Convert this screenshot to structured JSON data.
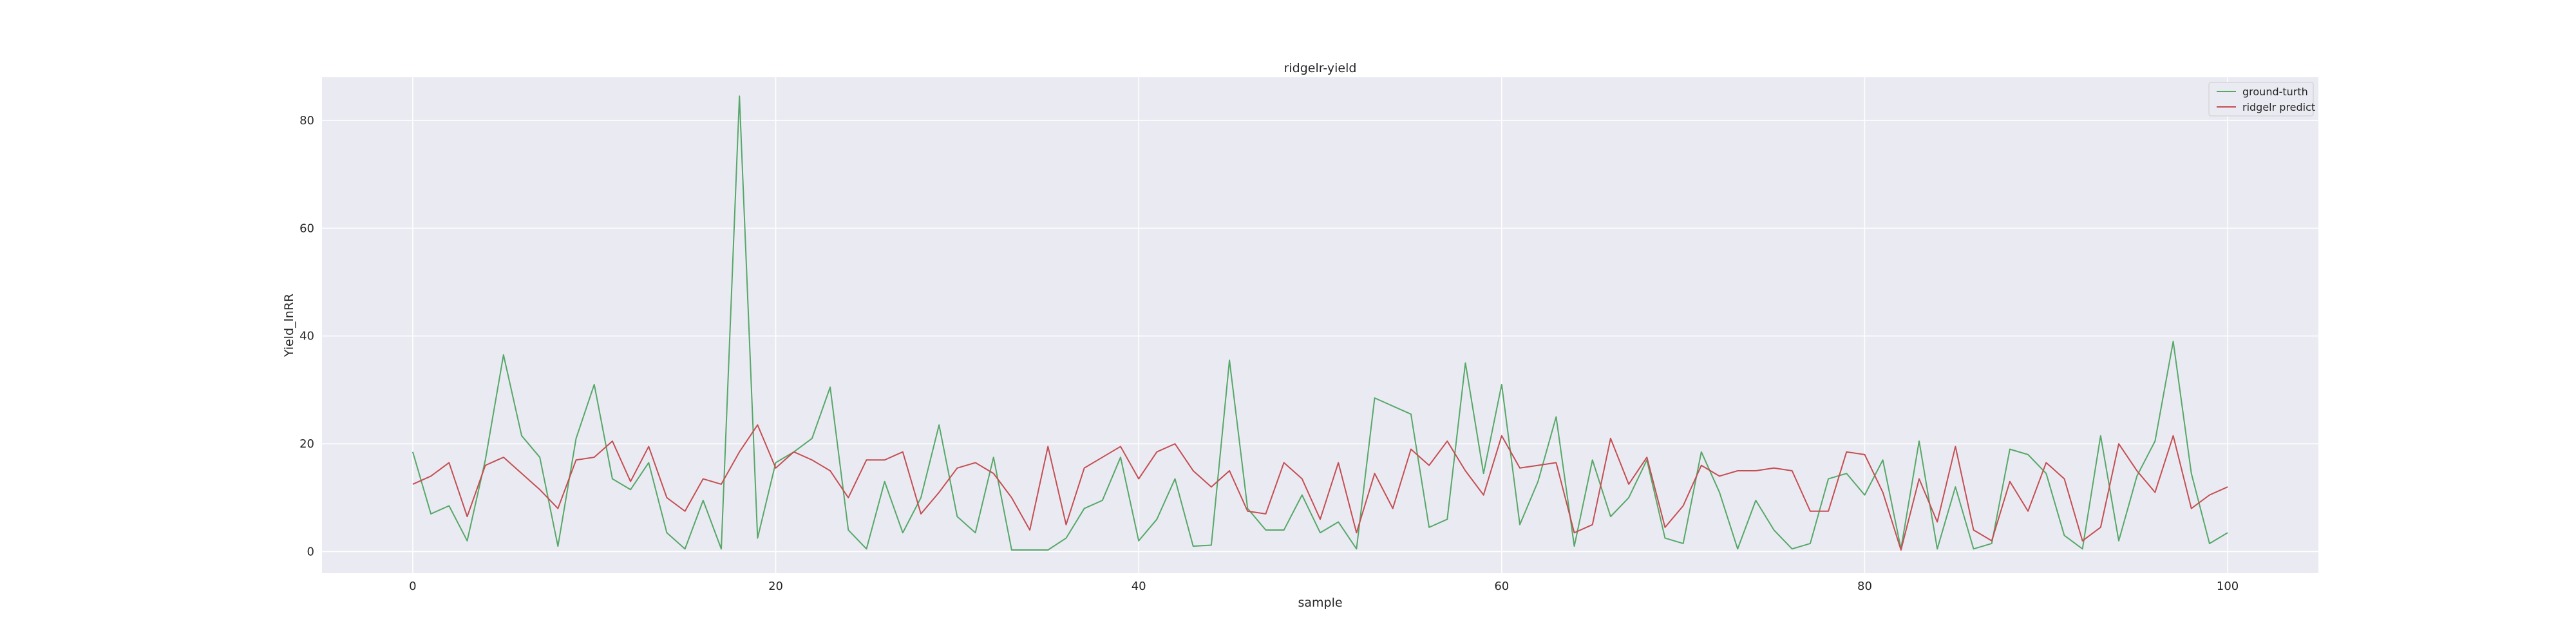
{
  "chart_data": {
    "type": "line",
    "title": "ridgelr-yield",
    "xlabel": "sample",
    "ylabel": "Yield_lnRR",
    "xlim": [
      -5,
      105
    ],
    "ylim": [
      -4,
      88
    ],
    "xticks": [
      0,
      20,
      40,
      60,
      80,
      100
    ],
    "yticks": [
      0,
      20,
      40,
      60,
      80
    ],
    "grid": true,
    "legend_position": "top-right",
    "series": [
      {
        "name": "ground-turth",
        "color": "#55a868",
        "values": [
          18.5,
          7,
          8.5,
          2,
          17,
          36.5,
          21.5,
          17.5,
          1,
          21,
          31,
          13.5,
          11.5,
          16.5,
          3.5,
          0.5,
          9.5,
          0.5,
          84.5,
          2.5,
          16.5,
          18.5,
          21,
          30.5,
          4,
          0.5,
          13,
          3.5,
          10,
          23.5,
          6.5,
          3.5,
          17.5,
          0.3,
          0.3,
          0.3,
          2.5,
          8,
          9.5,
          17.5,
          2,
          6,
          13.5,
          1,
          1.2,
          35.5,
          8,
          4,
          4,
          10.5,
          3.5,
          5.5,
          0.5,
          28.5,
          27,
          25.5,
          4.5,
          6,
          35,
          14.5,
          31,
          5,
          13,
          25,
          1,
          17,
          6.5,
          10,
          17,
          2.5,
          1.5,
          18.5,
          11,
          0.5,
          9.5,
          4,
          0.5,
          1.5,
          13.5,
          14.5,
          10.5,
          17,
          0.5,
          20.5,
          0.5,
          12,
          0.5,
          1.5,
          19,
          18,
          14.5,
          3,
          0.5,
          21.5,
          2,
          14,
          20.5,
          39,
          14.5,
          1.5,
          3.5
        ]
      },
      {
        "name": "ridgelr predict",
        "color": "#c44e52",
        "values": [
          12.5,
          14,
          16.5,
          6.5,
          16,
          17.5,
          14.5,
          11.5,
          8,
          17,
          17.5,
          20.5,
          13,
          19.5,
          10,
          7.5,
          13.5,
          12.5,
          18.5,
          23.5,
          15.5,
          18.5,
          17,
          15,
          10,
          17,
          17,
          18.5,
          7,
          11,
          15.5,
          16.5,
          14.5,
          10,
          4,
          19.5,
          5,
          15.5,
          17.5,
          19.5,
          13.5,
          18.5,
          20,
          15,
          12,
          15,
          7.5,
          7,
          16.5,
          13.5,
          6,
          16.5,
          3.5,
          14.5,
          8,
          19,
          16,
          20.5,
          15,
          10.5,
          21.5,
          15.5,
          16,
          16.5,
          3.5,
          5,
          21,
          12.5,
          17.5,
          4.5,
          8.5,
          16,
          14,
          15,
          15,
          15.5,
          15,
          7.5,
          7.5,
          18.5,
          18,
          11,
          0.3,
          13.5,
          5.5,
          19.5,
          4,
          2,
          13,
          7.5,
          16.5,
          13.5,
          2,
          4.5,
          20,
          15,
          11,
          21.5,
          8,
          10.5,
          12
        ]
      }
    ]
  }
}
